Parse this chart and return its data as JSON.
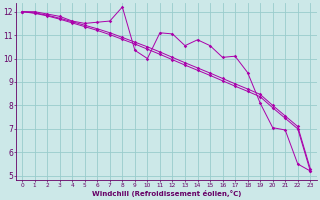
{
  "background_color": "#cce8e8",
  "grid_color": "#99cccc",
  "line_color": "#aa00aa",
  "x_data": [
    0,
    1,
    2,
    3,
    4,
    5,
    6,
    7,
    8,
    9,
    10,
    11,
    12,
    13,
    14,
    15,
    16,
    17,
    18,
    19,
    20,
    21,
    22,
    23
  ],
  "line1": [
    12.0,
    12.0,
    11.9,
    11.8,
    11.6,
    11.5,
    11.55,
    11.6,
    12.2,
    10.35,
    10.0,
    11.1,
    11.05,
    10.55,
    10.8,
    10.55,
    10.05,
    10.1,
    9.4,
    8.1,
    7.05,
    6.95,
    5.5,
    5.2
  ],
  "line2": [
    12.0,
    11.95,
    11.85,
    11.72,
    11.57,
    11.42,
    11.27,
    11.1,
    10.9,
    10.7,
    10.5,
    10.28,
    10.05,
    9.82,
    9.6,
    9.38,
    9.15,
    8.92,
    8.7,
    8.47,
    8.0,
    7.55,
    7.1,
    5.3
  ],
  "line3": [
    12.0,
    11.93,
    11.82,
    11.68,
    11.52,
    11.36,
    11.2,
    11.02,
    10.82,
    10.62,
    10.4,
    10.18,
    9.95,
    9.72,
    9.5,
    9.28,
    9.05,
    8.82,
    8.6,
    8.37,
    7.9,
    7.45,
    7.0,
    5.2
  ],
  "xlim_min": -0.5,
  "xlim_max": 23.5,
  "ylim_min": 4.8,
  "ylim_max": 12.35,
  "yticks": [
    5,
    6,
    7,
    8,
    9,
    10,
    11,
    12
  ],
  "xticks": [
    0,
    1,
    2,
    3,
    4,
    5,
    6,
    7,
    8,
    9,
    10,
    11,
    12,
    13,
    14,
    15,
    16,
    17,
    18,
    19,
    20,
    21,
    22,
    23
  ],
  "xlabel": "Windchill (Refroidissement éolien,°C)",
  "tick_color": "#660066",
  "label_color": "#660066",
  "xlabel_fontsize": 5.0,
  "ytick_fontsize": 5.5,
  "xtick_fontsize": 4.2,
  "marker": "D",
  "markersize": 1.8,
  "linewidth": 0.7
}
